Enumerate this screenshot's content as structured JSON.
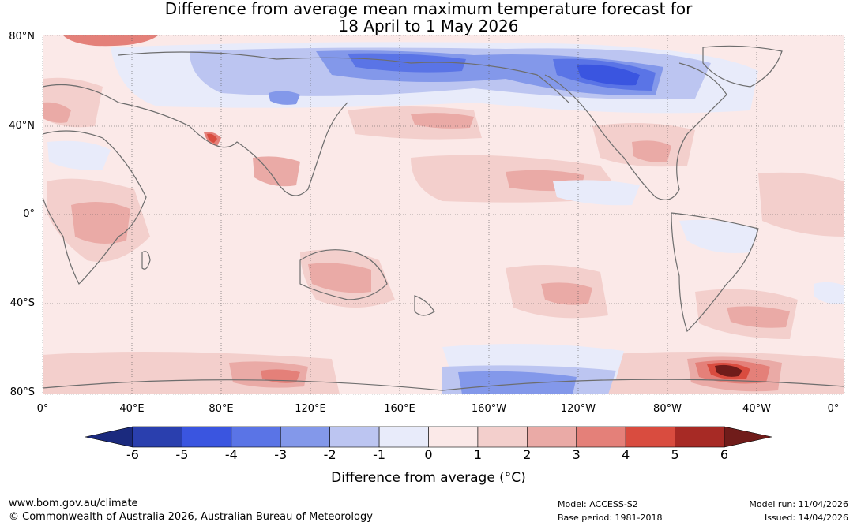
{
  "title": {
    "line1": "Difference from average mean maximum temperature forecast for",
    "line2": "18 April to 1 May 2026"
  },
  "map": {
    "lat_labels": [
      "80°N",
      "40°N",
      "0°",
      "40°S",
      "80°S"
    ],
    "lon_labels": [
      "0°",
      "40°E",
      "80°E",
      "120°E",
      "160°E",
      "160°W",
      "120°W",
      "80°W",
      "40°W",
      "0°"
    ]
  },
  "colorbar": {
    "ticks": [
      "-6",
      "-5",
      "-4",
      "-3",
      "-2",
      "-1",
      "0",
      "1",
      "2",
      "3",
      "4",
      "5",
      "6"
    ],
    "colors": [
      "#1b2a7e",
      "#2a3fae",
      "#3a55e0",
      "#5a74e6",
      "#8398ea",
      "#bcc5f1",
      "#e8ebfa",
      "#fbe9e8",
      "#f3cfcc",
      "#eaaaa6",
      "#e48079",
      "#d94c3f",
      "#a72a25",
      "#701c1a"
    ],
    "label": "Difference from average (°C)"
  },
  "footer": {
    "url": "www.bom.gov.au/climate",
    "copyright": "© Commonwealth of Australia 2026, Australian Bureau of Meteorology",
    "model": "Model: ACCESS-S2",
    "base_period": "Base period: 1981-2018",
    "model_run": "Model run: 11/04/2026",
    "issued": "Issued: 14/04/2026"
  }
}
